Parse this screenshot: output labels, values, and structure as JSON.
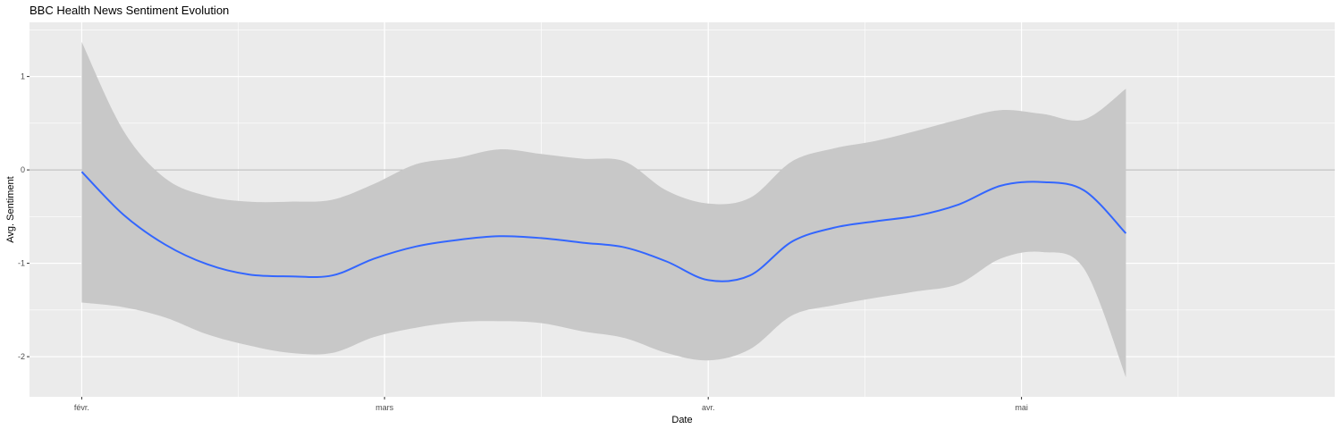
{
  "chart_data": {
    "type": "line",
    "title": "BBC Health News Sentiment Evolution",
    "xlabel": "Date",
    "ylabel": "Avg. Sentiment",
    "x_ticks": [
      {
        "date": "2020-02-01",
        "label": "févr."
      },
      {
        "date": "2020-03-01",
        "label": "mars"
      },
      {
        "date": "2020-04-01",
        "label": "avr."
      },
      {
        "date": "2020-05-01",
        "label": "mai"
      }
    ],
    "x_minor_ticks": [
      "2020-02-16",
      "2020-03-16",
      "2020-04-16",
      "2020-05-16"
    ],
    "y_ticks": [
      1,
      0,
      -1,
      -2
    ],
    "xlim": [
      "2020-01-27",
      "2020-05-31"
    ],
    "ylim": [
      -2.43,
      1.58
    ],
    "reference_line_y": 0,
    "grid": true,
    "colors": {
      "line": "#3366ff",
      "ribbon": "#c8c8c8",
      "panel": "#ebebeb",
      "grid": "#ffffff",
      "hline": "#b3b3b3"
    },
    "series": [
      {
        "type": "smooth_with_confidence_band",
        "x": [
          "2020-02-01",
          "2020-02-05",
          "2020-02-09",
          "2020-02-13",
          "2020-02-17",
          "2020-02-21",
          "2020-02-25",
          "2020-02-29",
          "2020-03-04",
          "2020-03-08",
          "2020-03-12",
          "2020-03-16",
          "2020-03-20",
          "2020-03-24",
          "2020-03-28",
          "2020-04-01",
          "2020-04-05",
          "2020-04-09",
          "2020-04-13",
          "2020-04-17",
          "2020-04-21",
          "2020-04-25",
          "2020-04-29",
          "2020-05-03",
          "2020-05-07",
          "2020-05-11"
        ],
        "y": [
          -0.02,
          -0.48,
          -0.8,
          -1.01,
          -1.12,
          -1.14,
          -1.13,
          -0.95,
          -0.82,
          -0.75,
          -0.71,
          -0.73,
          -0.78,
          -0.83,
          -0.98,
          -1.18,
          -1.13,
          -0.77,
          -0.62,
          -0.55,
          -0.49,
          -0.37,
          -0.17,
          -0.13,
          -0.22,
          -0.68
        ],
        "lower": [
          -1.42,
          -1.47,
          -1.58,
          -1.76,
          -1.88,
          -1.96,
          -1.96,
          -1.79,
          -1.69,
          -1.63,
          -1.62,
          -1.64,
          -1.73,
          -1.8,
          -1.96,
          -2.04,
          -1.92,
          -1.56,
          -1.45,
          -1.37,
          -1.3,
          -1.22,
          -0.95,
          -0.88,
          -1.06,
          -2.22
        ],
        "upper": [
          1.37,
          0.42,
          -0.09,
          -0.28,
          -0.34,
          -0.34,
          -0.32,
          -0.15,
          0.06,
          0.13,
          0.22,
          0.17,
          0.12,
          0.09,
          -0.22,
          -0.36,
          -0.3,
          0.09,
          0.23,
          0.31,
          0.42,
          0.54,
          0.64,
          0.6,
          0.54,
          0.87
        ]
      }
    ]
  }
}
